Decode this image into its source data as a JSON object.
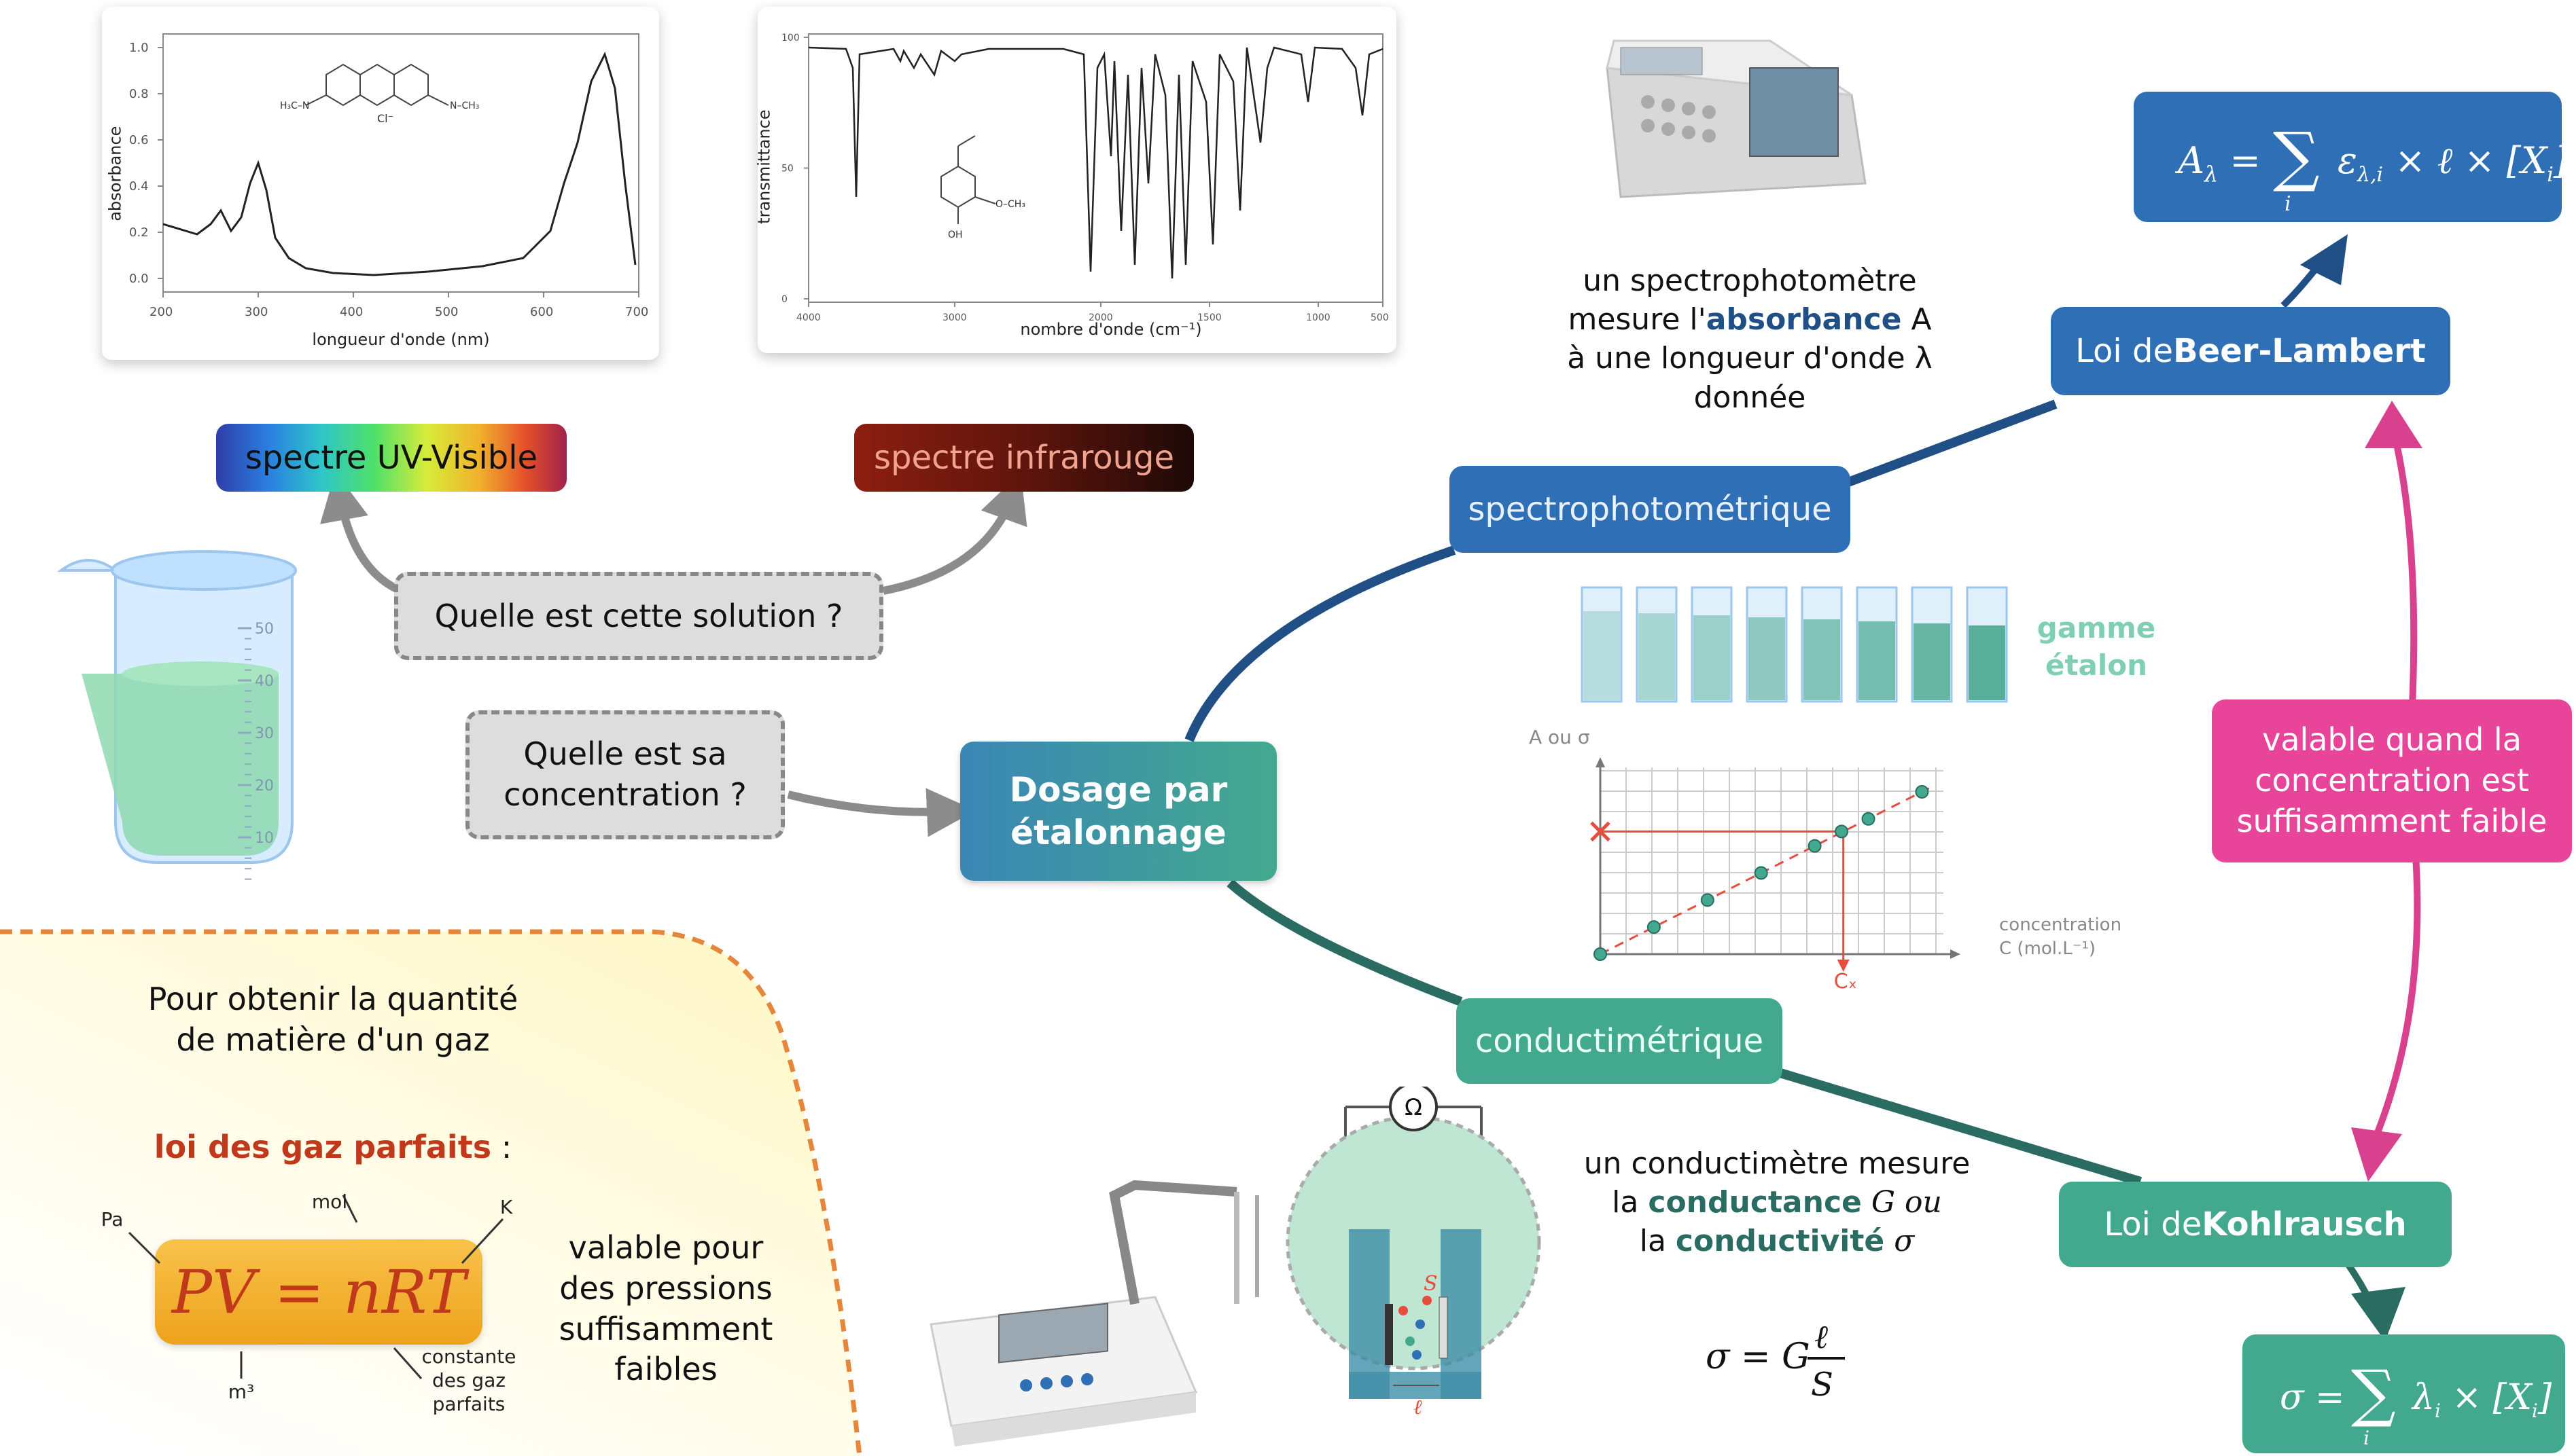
{
  "uv_chart": {
    "ylabel": "absorbance",
    "xlabel": "longueur d'onde (nm)",
    "xticks": [
      "200",
      "300",
      "400",
      "500",
      "600",
      "700"
    ],
    "yticks": [
      "1.0",
      "0.8",
      "0.6",
      "0.4",
      "0.2",
      "0.0"
    ]
  },
  "ir_chart": {
    "ylabel": "transmittance",
    "xlabel": "nombre d'onde (cm⁻¹)",
    "xticks": [
      "4000",
      "3000",
      "2000",
      "1500",
      "1000",
      "500"
    ],
    "yticks": [
      "100",
      "50",
      "0"
    ]
  },
  "boxes": {
    "uv": "spectre UV-Visible",
    "ir": "spectre infrarouge",
    "question1": "Quelle est cette solution ?",
    "question2_l1": "Quelle est sa",
    "question2_l2": "concentration ?",
    "center_l1": "Dosage par",
    "center_l2": "étalonnage",
    "spectro": "spectrophotométrique",
    "conducti": "conductimétrique",
    "beer_pre": "Loi de ",
    "beer_bold": "Beer-Lambert",
    "kohl_pre": "Loi de ",
    "kohl_bold": "Kohlrausch",
    "valid_l1": "valable quand la",
    "valid_l2": "concentration est",
    "valid_l3": "suffisamment faible"
  },
  "spectro_text": {
    "l1": "un spectrophotomètre",
    "l2_pre": "mesure l'",
    "l2_bold": "absorbance",
    "l2_post": " A",
    "l3": "à une longueur d'onde λ",
    "l4": "donnée"
  },
  "conduct_text": {
    "l1": "un conductimètre mesure",
    "l2_pre": "la ",
    "l2_bold": "conductance",
    "l2_post": " G ou",
    "l3_pre": "la ",
    "l3_bold": "conductivité",
    "l3_post": " σ"
  },
  "gamme": {
    "l1": "gamme",
    "l2": "étalon"
  },
  "calib": {
    "ylabel": "A ou σ",
    "xlabel_l1": "concentration",
    "xlabel_l2": "C (mol.L⁻¹)",
    "cx": "Cₓ",
    "points": [
      [
        0,
        0
      ],
      [
        1,
        0.75
      ],
      [
        2,
        1.5
      ],
      [
        3,
        2.25
      ],
      [
        4,
        3
      ],
      [
        4.5,
        3.4
      ],
      [
        5,
        3.75
      ],
      [
        6,
        4.5
      ]
    ],
    "unknown": 3.4
  },
  "beaker": {
    "ticks": [
      "50",
      "40",
      "30",
      "20",
      "10"
    ]
  },
  "gas": {
    "l1": "Pour obtenir la quantité",
    "l2": "de matière d'un gaz",
    "law_bold": "loi des gaz parfaits",
    "law_post": " :",
    "formula": "PV = nRT",
    "pa": "Pa",
    "mol": "mol",
    "k": "K",
    "m3": "m³",
    "c1": "constante",
    "c2": "des gaz",
    "c3": "parfaits",
    "v1": "valable pour",
    "v2": "des pressions",
    "v3": "suffisamment",
    "v4": "faibles"
  },
  "ohm": "Ω",
  "cell_S": "S",
  "cell_l": "ℓ",
  "colors": {
    "spectro_blue": "#2e6fb5",
    "conduct_teal": "#43a98e",
    "center": "#3f9faa",
    "pink": "#e8459a",
    "gas_red": "#c0391b"
  }
}
